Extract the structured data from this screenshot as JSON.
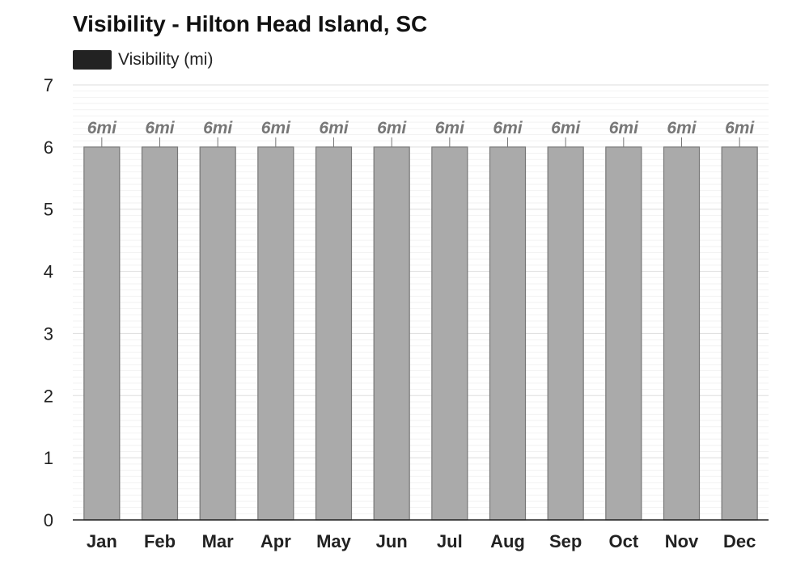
{
  "chart_data": {
    "type": "bar",
    "title": "Visibility - Hilton Head Island, SC",
    "legend": "Visibility (mi)",
    "categories": [
      "Jan",
      "Feb",
      "Mar",
      "Apr",
      "May",
      "Jun",
      "Jul",
      "Aug",
      "Sep",
      "Oct",
      "Nov",
      "Dec"
    ],
    "series": [
      {
        "name": "Visibility (mi)",
        "values": [
          6,
          6,
          6,
          6,
          6,
          6,
          6,
          6,
          6,
          6,
          6,
          6
        ],
        "data_labels": [
          "6mi",
          "6mi",
          "6mi",
          "6mi",
          "6mi",
          "6mi",
          "6mi",
          "6mi",
          "6mi",
          "6mi",
          "6mi",
          "6mi"
        ]
      }
    ],
    "ylim": [
      0,
      7
    ],
    "yticks": [
      "0",
      "1",
      "2",
      "3",
      "4",
      "5",
      "6",
      "7"
    ],
    "grid": true,
    "legend_position": "top-left",
    "colors": {
      "bar_fill": "#aaaaaa",
      "bar_stroke": "#777777",
      "legend_swatch": "#222222",
      "data_label": "#777777",
      "axis_text": "#222222",
      "grid_major": "#dddddd",
      "grid_minor": "#f2f2f2"
    }
  }
}
